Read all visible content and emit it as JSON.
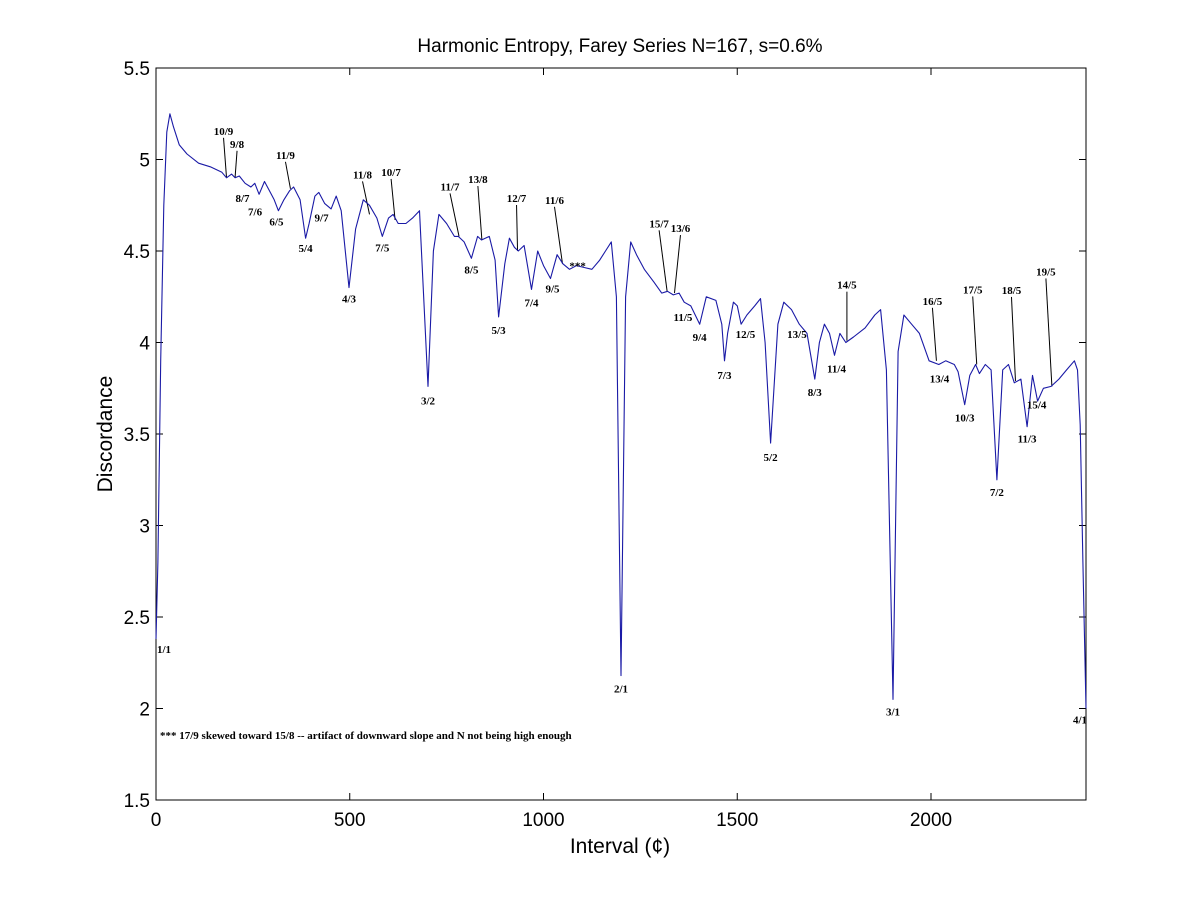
{
  "chart_data": {
    "type": "line",
    "title": "Harmonic Entropy, Farey Series N=167, s=0.6%",
    "xlabel": "Interval (¢)",
    "ylabel": "Discordance",
    "xlim": [
      0,
      2400
    ],
    "ylim": [
      1.5,
      5.5
    ],
    "xticks": [
      0,
      500,
      1000,
      1500,
      2000
    ],
    "yticks": [
      1.5,
      2,
      2.5,
      3,
      3.5,
      4,
      4.5,
      5,
      5.5
    ],
    "grid": false,
    "line_color": "#1a1aa6",
    "series": [
      {
        "x": [
          0,
          5,
          12,
          20,
          28,
          36,
          45,
          60,
          80,
          110,
          140,
          170,
          182,
          195,
          204,
          215,
          230,
          245,
          255,
          266,
          280,
          295,
          305,
          316,
          330,
          345,
          355,
          372,
          386,
          395,
          410,
          420,
          435,
          452,
          465,
          478,
          498,
          515,
          535,
          551,
          570,
          584,
          600,
          612,
          625,
          645,
          662,
          680,
          702,
          716,
          730,
          750,
          770,
          780,
          795,
          814,
          830,
          840,
          860,
          875,
          884,
          900,
          912,
          925,
          935,
          950,
          969,
          985,
          1000,
          1018,
          1035,
          1050,
          1067,
          1085,
          1105,
          1125,
          1145,
          1160,
          1175,
          1188,
          1200,
          1212,
          1225,
          1240,
          1260,
          1285,
          1305,
          1320,
          1335,
          1350,
          1363,
          1380,
          1403,
          1420,
          1445,
          1460,
          1467,
          1475,
          1490,
          1500,
          1510,
          1525,
          1545,
          1560,
          1572,
          1586,
          1605,
          1620,
          1640,
          1660,
          1680,
          1700,
          1712,
          1725,
          1738,
          1751,
          1765,
          1780,
          1800,
          1830,
          1855,
          1870,
          1885,
          1902,
          1915,
          1930,
          1950,
          1970,
          1995,
          2020,
          2038,
          2060,
          2070,
          2087,
          2100,
          2115,
          2125,
          2140,
          2155,
          2170,
          2185,
          2200,
          2215,
          2232,
          2248,
          2262,
          2275,
          2290,
          2310,
          2330,
          2350,
          2370,
          2378,
          2385,
          2392,
          2400
        ],
        "values": [
          2.38,
          2.8,
          3.9,
          4.75,
          5.15,
          5.25,
          5.18,
          5.08,
          5.03,
          4.98,
          4.96,
          4.93,
          4.9,
          4.92,
          4.9,
          4.91,
          4.87,
          4.85,
          4.87,
          4.81,
          4.88,
          4.82,
          4.78,
          4.72,
          4.78,
          4.83,
          4.85,
          4.78,
          4.57,
          4.65,
          4.8,
          4.82,
          4.76,
          4.73,
          4.8,
          4.72,
          4.3,
          4.62,
          4.78,
          4.75,
          4.68,
          4.58,
          4.68,
          4.7,
          4.65,
          4.65,
          4.68,
          4.72,
          3.76,
          4.5,
          4.7,
          4.65,
          4.58,
          4.58,
          4.55,
          4.46,
          4.58,
          4.56,
          4.58,
          4.45,
          4.14,
          4.43,
          4.57,
          4.52,
          4.5,
          4.53,
          4.29,
          4.5,
          4.42,
          4.35,
          4.48,
          4.43,
          4.4,
          4.42,
          4.41,
          4.4,
          4.45,
          4.5,
          4.55,
          4.25,
          2.18,
          4.25,
          4.55,
          4.48,
          4.4,
          4.33,
          4.27,
          4.28,
          4.26,
          4.27,
          4.22,
          4.2,
          4.1,
          4.25,
          4.23,
          4.1,
          3.9,
          4.05,
          4.22,
          4.2,
          4.1,
          4.15,
          4.2,
          4.24,
          4.0,
          3.45,
          4.1,
          4.22,
          4.18,
          4.1,
          4.05,
          3.8,
          4.0,
          4.1,
          4.05,
          3.93,
          4.05,
          4.0,
          4.03,
          4.08,
          4.15,
          4.18,
          3.85,
          2.05,
          3.95,
          4.15,
          4.1,
          4.05,
          3.9,
          3.88,
          3.9,
          3.88,
          3.84,
          3.66,
          3.82,
          3.88,
          3.83,
          3.88,
          3.85,
          3.25,
          3.85,
          3.88,
          3.78,
          3.8,
          3.54,
          3.82,
          3.68,
          3.75,
          3.76,
          3.8,
          3.85,
          3.9,
          3.85,
          3.55,
          2.8,
          2.0
        ]
      }
    ],
    "annotations": [
      {
        "text": "1/1",
        "x": 0,
        "y": 2.38
      },
      {
        "text": "10/9",
        "x": 182,
        "y": 4.9
      },
      {
        "text": "9/8",
        "x": 204,
        "y": 4.9
      },
      {
        "text": "8/7",
        "x": 231,
        "y": 4.86
      },
      {
        "text": "7/6",
        "x": 266,
        "y": 4.81
      },
      {
        "text": "6/5",
        "x": 316,
        "y": 4.72
      },
      {
        "text": "11/9",
        "x": 347,
        "y": 4.84
      },
      {
        "text": "5/4",
        "x": 386,
        "y": 4.57
      },
      {
        "text": "9/7",
        "x": 435,
        "y": 4.76
      },
      {
        "text": "4/3",
        "x": 498,
        "y": 4.3
      },
      {
        "text": "11/8",
        "x": 551,
        "y": 4.7
      },
      {
        "text": "7/5",
        "x": 584,
        "y": 4.58
      },
      {
        "text": "10/7",
        "x": 617,
        "y": 4.67
      },
      {
        "text": "3/2",
        "x": 702,
        "y": 3.76
      },
      {
        "text": "11/7",
        "x": 782,
        "y": 4.58
      },
      {
        "text": "8/5",
        "x": 814,
        "y": 4.46
      },
      {
        "text": "13/8",
        "x": 841,
        "y": 4.56
      },
      {
        "text": "5/3",
        "x": 884,
        "y": 4.14
      },
      {
        "text": "12/7",
        "x": 933,
        "y": 4.5
      },
      {
        "text": "7/4",
        "x": 969,
        "y": 4.29
      },
      {
        "text": "9/5",
        "x": 1018,
        "y": 4.35
      },
      {
        "text": "11/6",
        "x": 1049,
        "y": 4.43
      },
      {
        "text": "***",
        "x": 1088,
        "y": 4.42
      },
      {
        "text": "2/1",
        "x": 1200,
        "y": 2.18
      },
      {
        "text": "15/7",
        "x": 1319,
        "y": 4.28
      },
      {
        "text": "13/6",
        "x": 1338,
        "y": 4.27
      },
      {
        "text": "11/5",
        "x": 1365,
        "y": 4.22
      },
      {
        "text": "9/4",
        "x": 1403,
        "y": 4.1
      },
      {
        "text": "7/3",
        "x": 1467,
        "y": 3.9
      },
      {
        "text": "12/5",
        "x": 1516,
        "y": 4.1
      },
      {
        "text": "5/2",
        "x": 1586,
        "y": 3.45
      },
      {
        "text": "13/5",
        "x": 1654,
        "y": 4.1
      },
      {
        "text": "8/3",
        "x": 1700,
        "y": 3.8
      },
      {
        "text": "11/4",
        "x": 1751,
        "y": 3.93
      },
      {
        "text": "14/5",
        "x": 1783,
        "y": 4.01
      },
      {
        "text": "3/1",
        "x": 1902,
        "y": 2.05
      },
      {
        "text": "16/5",
        "x": 2014,
        "y": 3.9
      },
      {
        "text": "13/4",
        "x": 2040,
        "y": 3.89
      },
      {
        "text": "10/3",
        "x": 2087,
        "y": 3.66
      },
      {
        "text": "17/5",
        "x": 2118,
        "y": 3.88
      },
      {
        "text": "7/2",
        "x": 2170,
        "y": 3.25
      },
      {
        "text": "18/5",
        "x": 2218,
        "y": 3.79
      },
      {
        "text": "11/3",
        "x": 2248,
        "y": 3.54
      },
      {
        "text": "15/4",
        "x": 2288,
        "y": 3.75
      },
      {
        "text": "19/5",
        "x": 2312,
        "y": 3.76
      },
      {
        "text": "4/1",
        "x": 2400,
        "y": 2.0
      }
    ],
    "note": "*** 17/9 skewed toward 15/8 -- artifact of downward slope and N not being high enough"
  }
}
